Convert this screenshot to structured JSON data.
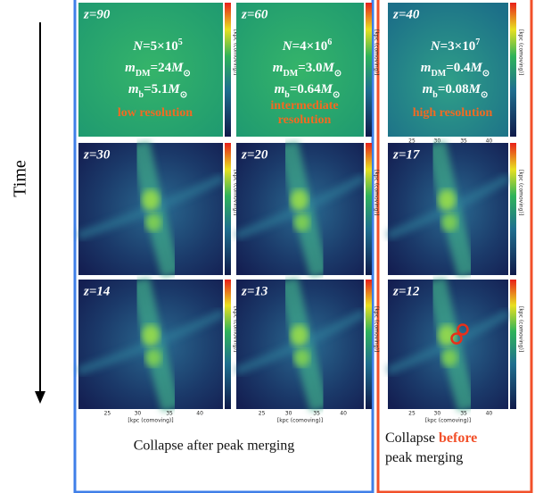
{
  "time_label": "Time",
  "panels": [
    {
      "z": "z=90",
      "params": [
        [
          {
            "text": "N",
            "style": "italic"
          },
          {
            "text": "=5×10"
          },
          {
            "text": "5",
            "style": "sup"
          }
        ],
        [
          {
            "text": "m",
            "style": "italic"
          },
          {
            "text": "DM",
            "style": "sub"
          },
          {
            "text": "=24"
          },
          {
            "text": "M",
            "style": "italic"
          },
          {
            "text": "⊙",
            "style": "sub"
          }
        ],
        [
          {
            "text": "m",
            "style": "italic"
          },
          {
            "text": "b",
            "style": "sub"
          },
          {
            "text": "=5.1"
          },
          {
            "text": "M",
            "style": "italic"
          },
          {
            "text": "⊙",
            "style": "sub"
          }
        ]
      ],
      "resolution": [
        "low resolution"
      ]
    },
    {
      "z": "z=60",
      "params": [
        [
          {
            "text": "N",
            "style": "italic"
          },
          {
            "text": "=4×10"
          },
          {
            "text": "6",
            "style": "sup"
          }
        ],
        [
          {
            "text": "m",
            "style": "italic"
          },
          {
            "text": "DM",
            "style": "sub"
          },
          {
            "text": "=3.0"
          },
          {
            "text": "M",
            "style": "italic"
          },
          {
            "text": "⊙",
            "style": "sub"
          }
        ],
        [
          {
            "text": "m",
            "style": "italic"
          },
          {
            "text": "b",
            "style": "sub"
          },
          {
            "text": "=0.64"
          },
          {
            "text": "M",
            "style": "italic"
          },
          {
            "text": "⊙",
            "style": "sub"
          }
        ]
      ],
      "resolution": [
        "intermediate",
        "resolution"
      ]
    },
    {
      "z": "z=40",
      "params": [
        [
          {
            "text": "N",
            "style": "italic"
          },
          {
            "text": "=3×10"
          },
          {
            "text": "7",
            "style": "sup"
          }
        ],
        [
          {
            "text": "m",
            "style": "italic"
          },
          {
            "text": "DM",
            "style": "sub"
          },
          {
            "text": "=0.4"
          },
          {
            "text": "M",
            "style": "italic"
          },
          {
            "text": "⊙",
            "style": "sub"
          }
        ],
        [
          {
            "text": "m",
            "style": "italic"
          },
          {
            "text": "b",
            "style": "sub"
          },
          {
            "text": "=0.08"
          },
          {
            "text": "M",
            "style": "italic"
          },
          {
            "text": "⊙",
            "style": "sub"
          }
        ]
      ],
      "resolution": [
        "high resolution"
      ]
    },
    {
      "z": "z=30"
    },
    {
      "z": "z=20"
    },
    {
      "z": "z=17"
    },
    {
      "z": "z=14"
    },
    {
      "z": "z=13"
    },
    {
      "z": "z=12"
    }
  ],
  "axis": {
    "ticks": [
      "25",
      "30",
      "35",
      "40"
    ],
    "label": "[kpc (comoving)]"
  },
  "captions": {
    "left": "Collapse after peak merging",
    "right": [
      [
        {
          "text": "Collapse "
        },
        {
          "text": "before",
          "style": "em"
        }
      ],
      [
        {
          "text": "peak merging"
        }
      ]
    ]
  }
}
